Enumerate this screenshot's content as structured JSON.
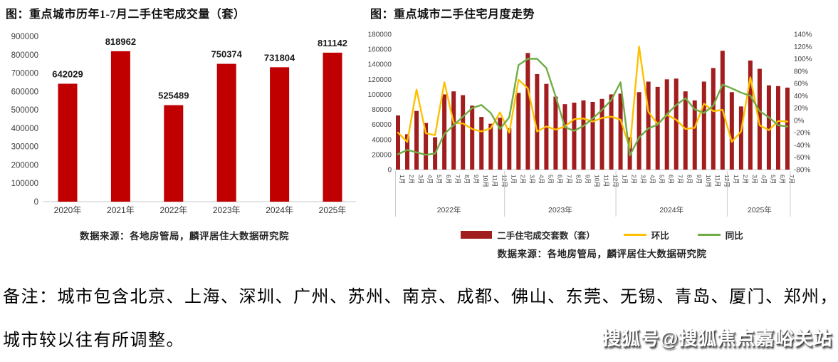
{
  "page": {
    "note_line1": "备注：城市包含北京、上海、深圳、广州、苏州、南京、成都、佛山、东莞、无锡、青岛、厦门、郑州，",
    "note_line2": "城市较以往有所调整。",
    "watermark": "搜狐号@搜狐焦点嘉峪关站"
  },
  "chart_data": [
    {
      "type": "bar",
      "title": "图：重点城市历年1-7月二手住宅成交量（套）",
      "categories": [
        "2020年",
        "2021年",
        "2022年",
        "2023年",
        "2024年",
        "2025年"
      ],
      "values": [
        642029,
        818962,
        525489,
        750374,
        731804,
        811142
      ],
      "data_labels": [
        "642029",
        "818962",
        "525489",
        "750374",
        "731804",
        "811142"
      ],
      "ylim": [
        0,
        900000
      ],
      "y_tick_labels": [
        "900000",
        "800000",
        "700000",
        "600000",
        "500000",
        "400000",
        "300000",
        "200000",
        "100000",
        "0"
      ],
      "bar_color": "#c00000",
      "grid": false,
      "legend_position": "none",
      "source": "数据来源：各地房管局，麟评居住大数据研究院"
    },
    {
      "type": "combo-bar-line",
      "title": "图：重点城市二手住宅月度走势",
      "year_groups": [
        {
          "label": "2022年",
          "months": [
            "1月",
            "2月",
            "3月",
            "4月",
            "5月",
            "6月",
            "7月",
            "8月",
            "9月",
            "10月",
            "11月",
            "12月"
          ]
        },
        {
          "label": "2023年",
          "months": [
            "1月",
            "2月",
            "3月",
            "4月",
            "5月",
            "6月",
            "7月",
            "8月",
            "9月",
            "10月",
            "11月",
            "12月"
          ]
        },
        {
          "label": "2024年",
          "months": [
            "1月",
            "2月",
            "3月",
            "4月",
            "5月",
            "6月",
            "7月",
            "8月",
            "9月",
            "10月",
            "11月",
            "12月"
          ]
        },
        {
          "label": "2025年",
          "months": [
            "1月",
            "2月",
            "3月",
            "4月",
            "5月",
            "6月",
            "7月"
          ]
        }
      ],
      "left_axis": {
        "min": 0,
        "max": 180000,
        "tick_labels": [
          "180000",
          "160000",
          "140000",
          "120000",
          "100000",
          "80000",
          "60000",
          "40000",
          "20000",
          "0"
        ]
      },
      "right_axis": {
        "min": -80,
        "max": 140,
        "tick_labels": [
          "140%",
          "120%",
          "100%",
          "80%",
          "60%",
          "40%",
          "20%",
          "0%",
          "-20%",
          "-40%",
          "-60%",
          "-80%"
        ]
      },
      "series": [
        {
          "name": "二手住宅成交套数（套）",
          "type": "bar",
          "axis": "left",
          "color": "#a21d1d",
          "values": [
            72000,
            47000,
            78000,
            62000,
            43000,
            100000,
            104000,
            99000,
            85000,
            70000,
            61000,
            69000,
            55000,
            102000,
            155000,
            127000,
            114000,
            97000,
            87000,
            89000,
            92000,
            90000,
            94000,
            100000,
            101000,
            43000,
            103000,
            117000,
            110000,
            120000,
            121000,
            104000,
            92000,
            117000,
            135000,
            158000,
            103000,
            84000,
            145000,
            134000,
            112000,
            111000,
            109000
          ]
        },
        {
          "name": "环比",
          "type": "line",
          "axis": "right",
          "color": "#ffc000",
          "values": [
            -20,
            -35,
            50,
            -21,
            -24,
            62,
            -4,
            -5,
            -14,
            -18,
            -13,
            13,
            -20,
            66,
            52,
            -18,
            -10,
            -15,
            -10,
            2,
            3,
            -2,
            4,
            6,
            1,
            -45,
            120,
            14,
            -6,
            9,
            1,
            -14,
            -12,
            27,
            15,
            17,
            -35,
            -18,
            70,
            -8,
            -16,
            -1,
            -2
          ]
        },
        {
          "name": "同比",
          "type": "line",
          "axis": "right",
          "color": "#70ad47",
          "values": [
            -55,
            -48,
            -52,
            -56,
            -54,
            -22,
            -8,
            6,
            20,
            25,
            12,
            -14,
            5,
            90,
            100,
            100,
            85,
            39,
            -11,
            -17,
            -9,
            3,
            17,
            33,
            62,
            -57,
            -28,
            -13,
            -7,
            10,
            25,
            36,
            18,
            12,
            24,
            58,
            52,
            45,
            40,
            15,
            5,
            -8,
            -10
          ]
        }
      ],
      "legend_position": "bottom",
      "grid": false,
      "source": "数据来源：各地房管局，麟评居住大数据研究院"
    }
  ]
}
